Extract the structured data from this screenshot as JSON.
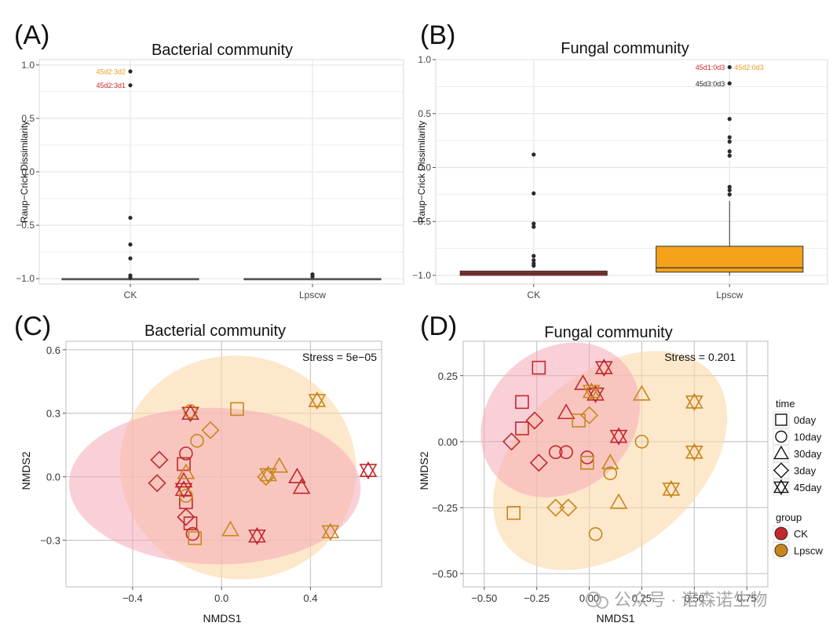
{
  "colors": {
    "ck": "#c0282d",
    "lpscw": "#c8861c",
    "box_ck": "#9e2a2c",
    "box_lpscw": "#f3a21a",
    "outlier": "#2b2b2b",
    "grid": "#e6e6e6",
    "grid_nmds": "#c8c8c8",
    "ellipse_ck": "#f4aab7",
    "ellipse_lpscw": "#fbd9a8"
  },
  "panels": {
    "A": {
      "tag": "(A)",
      "title": "Bacterial community"
    },
    "B": {
      "tag": "(B)",
      "title": "Fungal community"
    },
    "C": {
      "tag": "(C)",
      "title": "Bacterial community",
      "stress": "Stress = 5e−05"
    },
    "D": {
      "tag": "(D)",
      "title": "Fungal community",
      "stress": "Stress = 0.201"
    }
  },
  "legend": {
    "time_title": "time",
    "time_items": [
      "0day",
      "10day",
      "30day",
      "3day",
      "45day"
    ],
    "time_shapes": [
      "square",
      "circle",
      "triangle",
      "diamond",
      "star"
    ],
    "group_title": "group",
    "group_items": [
      "CK",
      "Lpscw"
    ]
  },
  "watermark": "公众号 · 诺森诺生物",
  "chart_data": [
    {
      "panel": "A",
      "type": "box",
      "ylabel": "Raup−Crick Dissimilarity",
      "categories": [
        "CK",
        "Lpscw"
      ],
      "ylim": [
        -1.05,
        1.05
      ],
      "yticks": [
        -1.0,
        -0.5,
        0.0,
        0.5,
        1.0
      ],
      "ytick_labels": [
        "−1.0",
        "−0.5",
        "0.0",
        "0.5",
        "1.0"
      ],
      "boxes": [
        {
          "group": "CK",
          "q1": -1.0,
          "median": -1.0,
          "q3": -1.0,
          "whisker_low": -1.0,
          "whisker_high": -1.0,
          "outliers": [
            0.94,
            0.81,
            -0.43,
            -0.68,
            -0.81,
            -0.97,
            -0.99
          ]
        },
        {
          "group": "Lpscw",
          "q1": -1.0,
          "median": -1.0,
          "q3": -1.0,
          "whisker_low": -1.0,
          "whisker_high": -1.0,
          "outliers": [
            -0.96,
            -0.98
          ]
        }
      ],
      "annotations": [
        {
          "label": "45d2:3d2",
          "group": "CK",
          "y": 0.94,
          "color": "#e89c1e"
        },
        {
          "label": "45d2:3d1",
          "group": "CK",
          "y": 0.81,
          "color": "#cc2a2a"
        }
      ]
    },
    {
      "panel": "B",
      "type": "box",
      "ylabel": "Raup−Crick Dissimilarity",
      "categories": [
        "CK",
        "Lpscw"
      ],
      "ylim": [
        -1.08,
        1.0
      ],
      "yticks": [
        -1.0,
        -0.5,
        0.0,
        0.5,
        1.0
      ],
      "ytick_labels": [
        "−1.0",
        "−0.5",
        "0.0",
        "0.5",
        "1.0"
      ],
      "boxes": [
        {
          "group": "CK",
          "q1": -1.0,
          "median": -0.98,
          "q3": -0.96,
          "whisker_low": -1.0,
          "whisker_high": -0.96,
          "outliers": [
            0.12,
            -0.24,
            -0.52,
            -0.55,
            -0.82,
            -0.86,
            -0.89,
            -0.91
          ]
        },
        {
          "group": "Lpscw",
          "q1": -0.97,
          "median": -0.93,
          "q3": -0.73,
          "whisker_low": -1.0,
          "whisker_high": -0.31,
          "outliers": [
            0.93,
            0.78,
            0.45,
            0.28,
            0.24,
            0.15,
            0.11,
            -0.18,
            -0.21,
            -0.25
          ]
        }
      ],
      "annotations": [
        {
          "label": "45d1:0d3",
          "group": "Lpscw",
          "y": 0.93,
          "side": "left",
          "color": "#cc2a2a"
        },
        {
          "label": "45d2:0d3",
          "group": "Lpscw",
          "y": 0.93,
          "side": "right",
          "color": "#e89c1e"
        },
        {
          "label": "45d3:0d3",
          "group": "Lpscw",
          "y": 0.78,
          "side": "left",
          "color": "#222222"
        }
      ]
    },
    {
      "panel": "C",
      "type": "scatter",
      "xlabel": "NMDS1",
      "ylabel": "NMDS2",
      "xlim": [
        -0.7,
        0.72
      ],
      "ylim": [
        -0.52,
        0.64
      ],
      "xticks": [
        -0.4,
        0.0,
        0.4
      ],
      "xtick_labels": [
        "−0.4",
        "0.0",
        "0.4"
      ],
      "yticks": [
        -0.3,
        0.0,
        0.3,
        0.6
      ],
      "ytick_labels": [
        "−0.3",
        "0.0",
        "0.3",
        "0.6"
      ],
      "points": [
        {
          "x": -0.16,
          "y": 0.11,
          "group": "CK",
          "time": "10day"
        },
        {
          "x": -0.28,
          "y": 0.08,
          "group": "CK",
          "time": "3day"
        },
        {
          "x": -0.29,
          "y": -0.03,
          "group": "CK",
          "time": "3day"
        },
        {
          "x": -0.17,
          "y": 0.06,
          "group": "CK",
          "time": "0day"
        },
        {
          "x": -0.17,
          "y": -0.02,
          "group": "CK",
          "time": "30day"
        },
        {
          "x": -0.17,
          "y": -0.06,
          "group": "CK",
          "time": "45day"
        },
        {
          "x": -0.16,
          "y": -0.12,
          "group": "CK",
          "time": "0day"
        },
        {
          "x": -0.16,
          "y": -0.19,
          "group": "CK",
          "time": "3day"
        },
        {
          "x": -0.14,
          "y": -0.22,
          "group": "CK",
          "time": "0day"
        },
        {
          "x": -0.13,
          "y": -0.27,
          "group": "CK",
          "time": "10day"
        },
        {
          "x": -0.14,
          "y": 0.3,
          "group": "CK",
          "time": "45day"
        },
        {
          "x": 0.16,
          "y": -0.28,
          "group": "CK",
          "time": "45day"
        },
        {
          "x": 0.34,
          "y": 0.0,
          "group": "CK",
          "time": "30day"
        },
        {
          "x": 0.36,
          "y": -0.05,
          "group": "CK",
          "time": "30day"
        },
        {
          "x": 0.66,
          "y": 0.03,
          "group": "CK",
          "time": "45day"
        },
        {
          "x": -0.14,
          "y": 0.31,
          "group": "Lpscw",
          "time": "10day"
        },
        {
          "x": -0.11,
          "y": 0.17,
          "group": "Lpscw",
          "time": "10day"
        },
        {
          "x": -0.05,
          "y": 0.22,
          "group": "Lpscw",
          "time": "3day"
        },
        {
          "x": 0.07,
          "y": 0.32,
          "group": "Lpscw",
          "time": "0day"
        },
        {
          "x": 0.43,
          "y": 0.36,
          "group": "Lpscw",
          "time": "45day"
        },
        {
          "x": -0.16,
          "y": 0.02,
          "group": "Lpscw",
          "time": "30day"
        },
        {
          "x": -0.16,
          "y": -0.09,
          "group": "Lpscw",
          "time": "10day"
        },
        {
          "x": -0.12,
          "y": -0.29,
          "group": "Lpscw",
          "time": "0day"
        },
        {
          "x": 0.04,
          "y": -0.25,
          "group": "Lpscw",
          "time": "30day"
        },
        {
          "x": 0.2,
          "y": 0.0,
          "group": "Lpscw",
          "time": "3day"
        },
        {
          "x": 0.21,
          "y": 0.01,
          "group": "Lpscw",
          "time": "45day"
        },
        {
          "x": 0.26,
          "y": 0.05,
          "group": "Lpscw",
          "time": "30day"
        },
        {
          "x": 0.49,
          "y": -0.26,
          "group": "Lpscw",
          "time": "45day"
        }
      ]
    },
    {
      "panel": "D",
      "type": "scatter",
      "xlabel": "NMDS1",
      "ylabel": "NMDS2",
      "xlim": [
        -0.6,
        0.85
      ],
      "ylim": [
        -0.55,
        0.38
      ],
      "xticks": [
        -0.5,
        -0.25,
        0.0,
        0.25,
        0.5,
        0.75
      ],
      "xtick_labels": [
        "−0.50",
        "−0.25",
        "0.00",
        "0.25",
        "0.50",
        "0.75"
      ],
      "yticks": [
        -0.5,
        -0.25,
        0.0,
        0.25
      ],
      "ytick_labels": [
        "−0.50",
        "−0.25",
        "0.00",
        "0.25"
      ],
      "points": [
        {
          "x": -0.24,
          "y": 0.28,
          "group": "CK",
          "time": "0day"
        },
        {
          "x": -0.32,
          "y": 0.15,
          "group": "CK",
          "time": "0day"
        },
        {
          "x": -0.32,
          "y": 0.05,
          "group": "CK",
          "time": "0day"
        },
        {
          "x": -0.37,
          "y": 0.0,
          "group": "CK",
          "time": "3day"
        },
        {
          "x": -0.26,
          "y": 0.08,
          "group": "CK",
          "time": "3day"
        },
        {
          "x": -0.24,
          "y": -0.08,
          "group": "CK",
          "time": "3day"
        },
        {
          "x": -0.16,
          "y": -0.04,
          "group": "CK",
          "time": "10day"
        },
        {
          "x": -0.11,
          "y": -0.04,
          "group": "CK",
          "time": "10day"
        },
        {
          "x": -0.01,
          "y": -0.06,
          "group": "CK",
          "time": "10day"
        },
        {
          "x": -0.11,
          "y": 0.11,
          "group": "CK",
          "time": "30day"
        },
        {
          "x": -0.03,
          "y": 0.22,
          "group": "CK",
          "time": "30day"
        },
        {
          "x": 0.03,
          "y": 0.18,
          "group": "CK",
          "time": "45day"
        },
        {
          "x": 0.07,
          "y": 0.28,
          "group": "CK",
          "time": "45day"
        },
        {
          "x": 0.14,
          "y": 0.02,
          "group": "CK",
          "time": "45day"
        },
        {
          "x": 0.01,
          "y": 0.19,
          "group": "Lpscw",
          "time": "45day"
        },
        {
          "x": -0.05,
          "y": 0.08,
          "group": "Lpscw",
          "time": "0day"
        },
        {
          "x": 0.0,
          "y": 0.1,
          "group": "Lpscw",
          "time": "3day"
        },
        {
          "x": -0.01,
          "y": -0.08,
          "group": "Lpscw",
          "time": "0day"
        },
        {
          "x": -0.36,
          "y": -0.27,
          "group": "Lpscw",
          "time": "0day"
        },
        {
          "x": -0.16,
          "y": -0.25,
          "group": "Lpscw",
          "time": "3day"
        },
        {
          "x": -0.1,
          "y": -0.25,
          "group": "Lpscw",
          "time": "3day"
        },
        {
          "x": 0.03,
          "y": -0.35,
          "group": "Lpscw",
          "time": "10day"
        },
        {
          "x": 0.1,
          "y": -0.12,
          "group": "Lpscw",
          "time": "10day"
        },
        {
          "x": 0.1,
          "y": -0.08,
          "group": "Lpscw",
          "time": "30day"
        },
        {
          "x": 0.14,
          "y": -0.23,
          "group": "Lpscw",
          "time": "30day"
        },
        {
          "x": 0.25,
          "y": 0.18,
          "group": "Lpscw",
          "time": "30day"
        },
        {
          "x": 0.25,
          "y": 0.0,
          "group": "Lpscw",
          "time": "10day"
        },
        {
          "x": 0.39,
          "y": -0.18,
          "group": "Lpscw",
          "time": "45day"
        },
        {
          "x": 0.5,
          "y": 0.15,
          "group": "Lpscw",
          "time": "45day"
        },
        {
          "x": 0.5,
          "y": -0.04,
          "group": "Lpscw",
          "time": "45day"
        }
      ]
    }
  ]
}
